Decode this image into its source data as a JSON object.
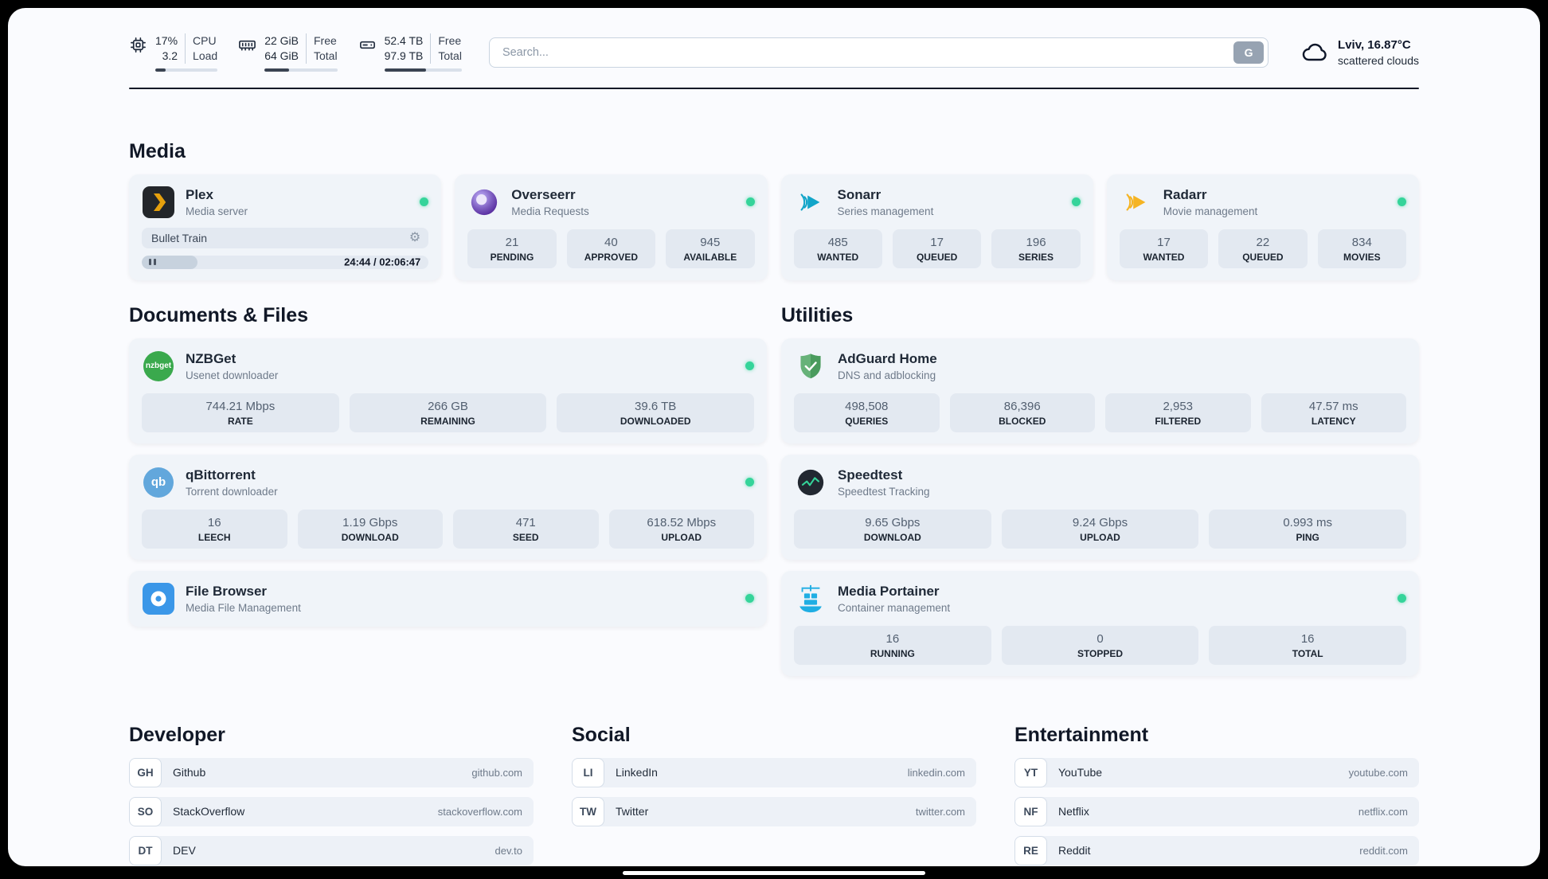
{
  "colors": {
    "status_online": "#35d49a",
    "accent_dark": "#111827",
    "card_bg": "#f0f4f9",
    "stat_bg": "#e3e9f1"
  },
  "header": {
    "cpu": {
      "value_top": "17%",
      "value_bottom": "3.2",
      "label_top": "CPU",
      "label_bottom": "Load",
      "bar_percent": 17
    },
    "ram": {
      "value_top": "22 GiB",
      "value_bottom": "64 GiB",
      "label_top": "Free",
      "label_bottom": "Total",
      "bar_percent": 34
    },
    "disk": {
      "value_top": "52.4 TB",
      "value_bottom": "97.9 TB",
      "label_top": "Free",
      "label_bottom": "Total",
      "bar_percent": 54
    },
    "search": {
      "placeholder": "Search...",
      "button_label": "G"
    },
    "weather": {
      "location": "Lviv, 16.87°C",
      "condition": "scattered clouds"
    }
  },
  "media": {
    "title": "Media",
    "plex": {
      "name": "Plex",
      "subtitle": "Media server",
      "now_playing": "Bullet Train",
      "time": "24:44 / 02:06:47",
      "progress_percent": 19.5
    },
    "overseerr": {
      "name": "Overseerr",
      "subtitle": "Media Requests",
      "stats": [
        {
          "value": "21",
          "label": "PENDING"
        },
        {
          "value": "40",
          "label": "APPROVED"
        },
        {
          "value": "945",
          "label": "AVAILABLE"
        }
      ]
    },
    "sonarr": {
      "name": "Sonarr",
      "subtitle": "Series management",
      "stats": [
        {
          "value": "485",
          "label": "WANTED"
        },
        {
          "value": "17",
          "label": "QUEUED"
        },
        {
          "value": "196",
          "label": "SERIES"
        }
      ]
    },
    "radarr": {
      "name": "Radarr",
      "subtitle": "Movie management",
      "stats": [
        {
          "value": "17",
          "label": "WANTED"
        },
        {
          "value": "22",
          "label": "QUEUED"
        },
        {
          "value": "834",
          "label": "MOVIES"
        }
      ]
    }
  },
  "documents": {
    "title": "Documents & Files",
    "nzbget": {
      "name": "NZBGet",
      "subtitle": "Usenet downloader",
      "icon_text": "nzbget",
      "stats": [
        {
          "value": "744.21 Mbps",
          "label": "RATE"
        },
        {
          "value": "266 GB",
          "label": "REMAINING"
        },
        {
          "value": "39.6 TB",
          "label": "DOWNLOADED"
        }
      ]
    },
    "qbittorrent": {
      "name": "qBittorrent",
      "subtitle": "Torrent downloader",
      "icon_text": "qb",
      "stats": [
        {
          "value": "16",
          "label": "LEECH"
        },
        {
          "value": "1.19 Gbps",
          "label": "DOWNLOAD"
        },
        {
          "value": "471",
          "label": "SEED"
        },
        {
          "value": "618.52 Mbps",
          "label": "UPLOAD"
        }
      ]
    },
    "filebrowser": {
      "name": "File Browser",
      "subtitle": "Media File Management"
    }
  },
  "utilities": {
    "title": "Utilities",
    "adguard": {
      "name": "AdGuard Home",
      "subtitle": "DNS and adblocking",
      "stats": [
        {
          "value": "498,508",
          "label": "QUERIES"
        },
        {
          "value": "86,396",
          "label": "BLOCKED"
        },
        {
          "value": "2,953",
          "label": "FILTERED"
        },
        {
          "value": "47.57 ms",
          "label": "LATENCY"
        }
      ]
    },
    "speedtest": {
      "name": "Speedtest",
      "subtitle": "Speedtest Tracking",
      "stats": [
        {
          "value": "9.65 Gbps",
          "label": "DOWNLOAD"
        },
        {
          "value": "9.24 Gbps",
          "label": "UPLOAD"
        },
        {
          "value": "0.993 ms",
          "label": "PING"
        }
      ]
    },
    "portainer": {
      "name": "Media Portainer",
      "subtitle": "Container management",
      "stats": [
        {
          "value": "16",
          "label": "RUNNING"
        },
        {
          "value": "0",
          "label": "STOPPED"
        },
        {
          "value": "16",
          "label": "TOTAL"
        }
      ]
    }
  },
  "bookmarks": {
    "developer": {
      "title": "Developer",
      "items": [
        {
          "abbr": "GH",
          "name": "Github",
          "url": "github.com"
        },
        {
          "abbr": "SO",
          "name": "StackOverflow",
          "url": "stackoverflow.com"
        },
        {
          "abbr": "DT",
          "name": "DEV",
          "url": "dev.to"
        }
      ]
    },
    "social": {
      "title": "Social",
      "items": [
        {
          "abbr": "LI",
          "name": "LinkedIn",
          "url": "linkedin.com"
        },
        {
          "abbr": "TW",
          "name": "Twitter",
          "url": "twitter.com"
        }
      ]
    },
    "entertainment": {
      "title": "Entertainment",
      "items": [
        {
          "abbr": "YT",
          "name": "YouTube",
          "url": "youtube.com"
        },
        {
          "abbr": "NF",
          "name": "Netflix",
          "url": "netflix.com"
        },
        {
          "abbr": "RE",
          "name": "Reddit",
          "url": "reddit.com"
        }
      ]
    }
  }
}
